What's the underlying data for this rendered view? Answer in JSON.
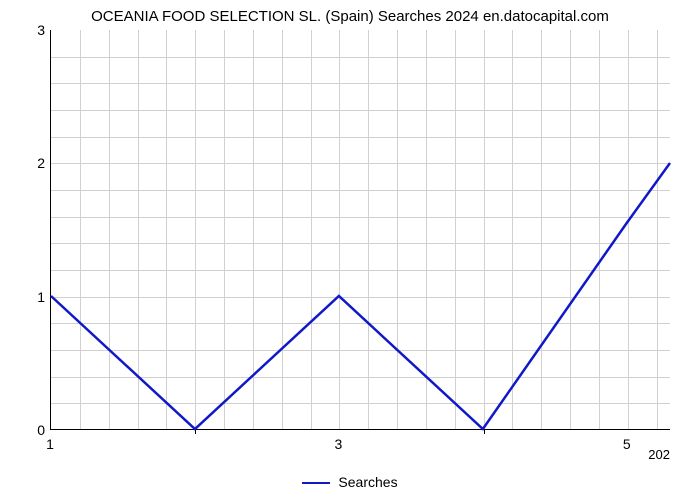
{
  "chart": {
    "type": "line",
    "title": "OCEANIA FOOD SELECTION SL. (Spain) Searches 2024 en.datocapital.com",
    "title_fontsize": 15,
    "background_color": "#ffffff",
    "plot_border_color": "#000000",
    "grid_color": "#d0d0d0",
    "font_family": "Arial",
    "tick_fontsize": 14,
    "x": {
      "min": 1,
      "max": 5.3,
      "tick_positions": [
        1,
        3,
        5
      ],
      "tick_labels": [
        "1",
        "3",
        "5"
      ],
      "minor_tick_positions": [
        2,
        4
      ],
      "right_label": "202"
    },
    "y": {
      "min": 0,
      "max": 3,
      "tick_positions": [
        0,
        1,
        2,
        3
      ],
      "tick_labels": [
        "0",
        "1",
        "2",
        "3"
      ]
    },
    "grid_x_minor_positions": [
      1.2,
      1.4,
      1.6,
      1.8,
      2.0,
      2.2,
      2.4,
      2.6,
      2.8,
      3.0,
      3.2,
      3.4,
      3.6,
      3.8,
      4.0,
      4.2,
      4.4,
      4.6,
      4.8,
      5.0,
      5.2
    ],
    "grid_y_minor_positions": [
      0.2,
      0.4,
      0.6,
      0.8,
      1.0,
      1.2,
      1.4,
      1.6,
      1.8,
      2.0,
      2.2,
      2.4,
      2.6,
      2.8
    ],
    "series": {
      "name": "Searches",
      "color": "#1018c8",
      "line_width": 2.5,
      "x": [
        1,
        2,
        3,
        4,
        5,
        5.3
      ],
      "y": [
        1,
        0,
        1,
        0,
        1.55,
        2.0
      ]
    },
    "legend": {
      "label": "Searches",
      "position": "bottom-center"
    }
  }
}
